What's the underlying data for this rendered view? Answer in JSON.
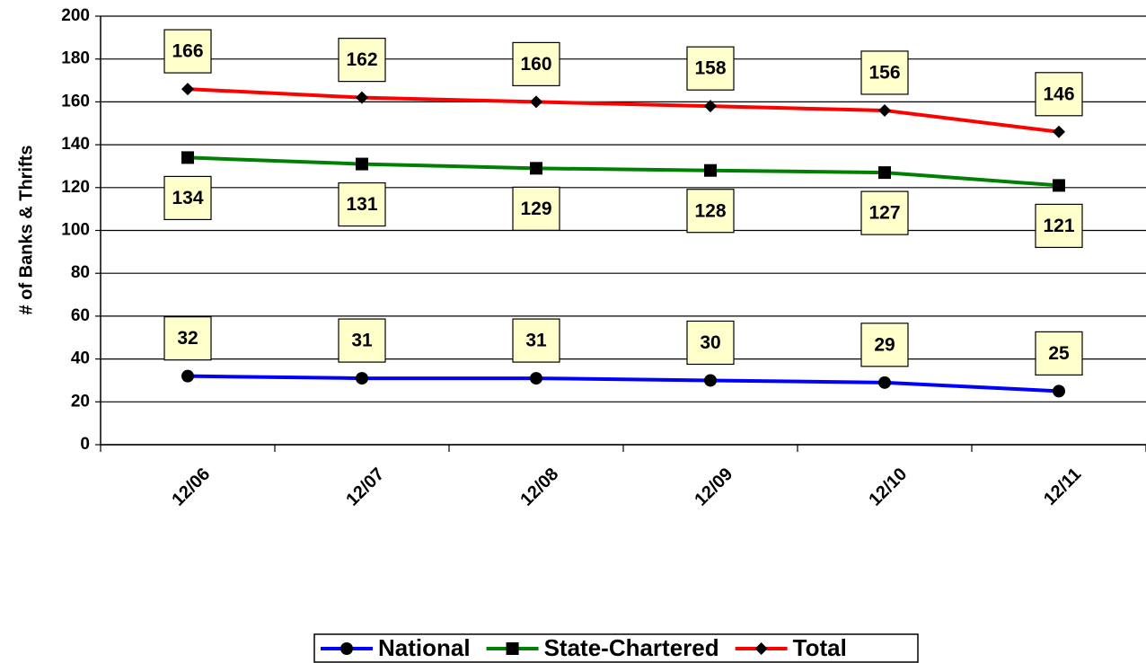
{
  "chart_data": {
    "type": "line",
    "y_label": "# of Banks & Thrifts",
    "categories": [
      "12/06",
      "12/07",
      "12/08",
      "12/09",
      "12/10",
      "12/11"
    ],
    "series": [
      {
        "name": "National",
        "color": "#0000ff",
        "marker": "circle",
        "label_position": "above",
        "values": [
          32,
          31,
          31,
          30,
          29,
          25
        ]
      },
      {
        "name": "State-Chartered",
        "color": "#008000",
        "marker": "square",
        "label_position": "below",
        "values": [
          134,
          131,
          129,
          128,
          127,
          121
        ]
      },
      {
        "name": "Total",
        "color": "#ff0000",
        "marker": "diamond",
        "label_position": "above",
        "values": [
          166,
          162,
          160,
          158,
          156,
          146
        ]
      }
    ],
    "ylim": [
      0,
      200
    ],
    "yticks": [
      0,
      20,
      40,
      60,
      80,
      100,
      120,
      140,
      160,
      180,
      200
    ],
    "grid": true
  }
}
